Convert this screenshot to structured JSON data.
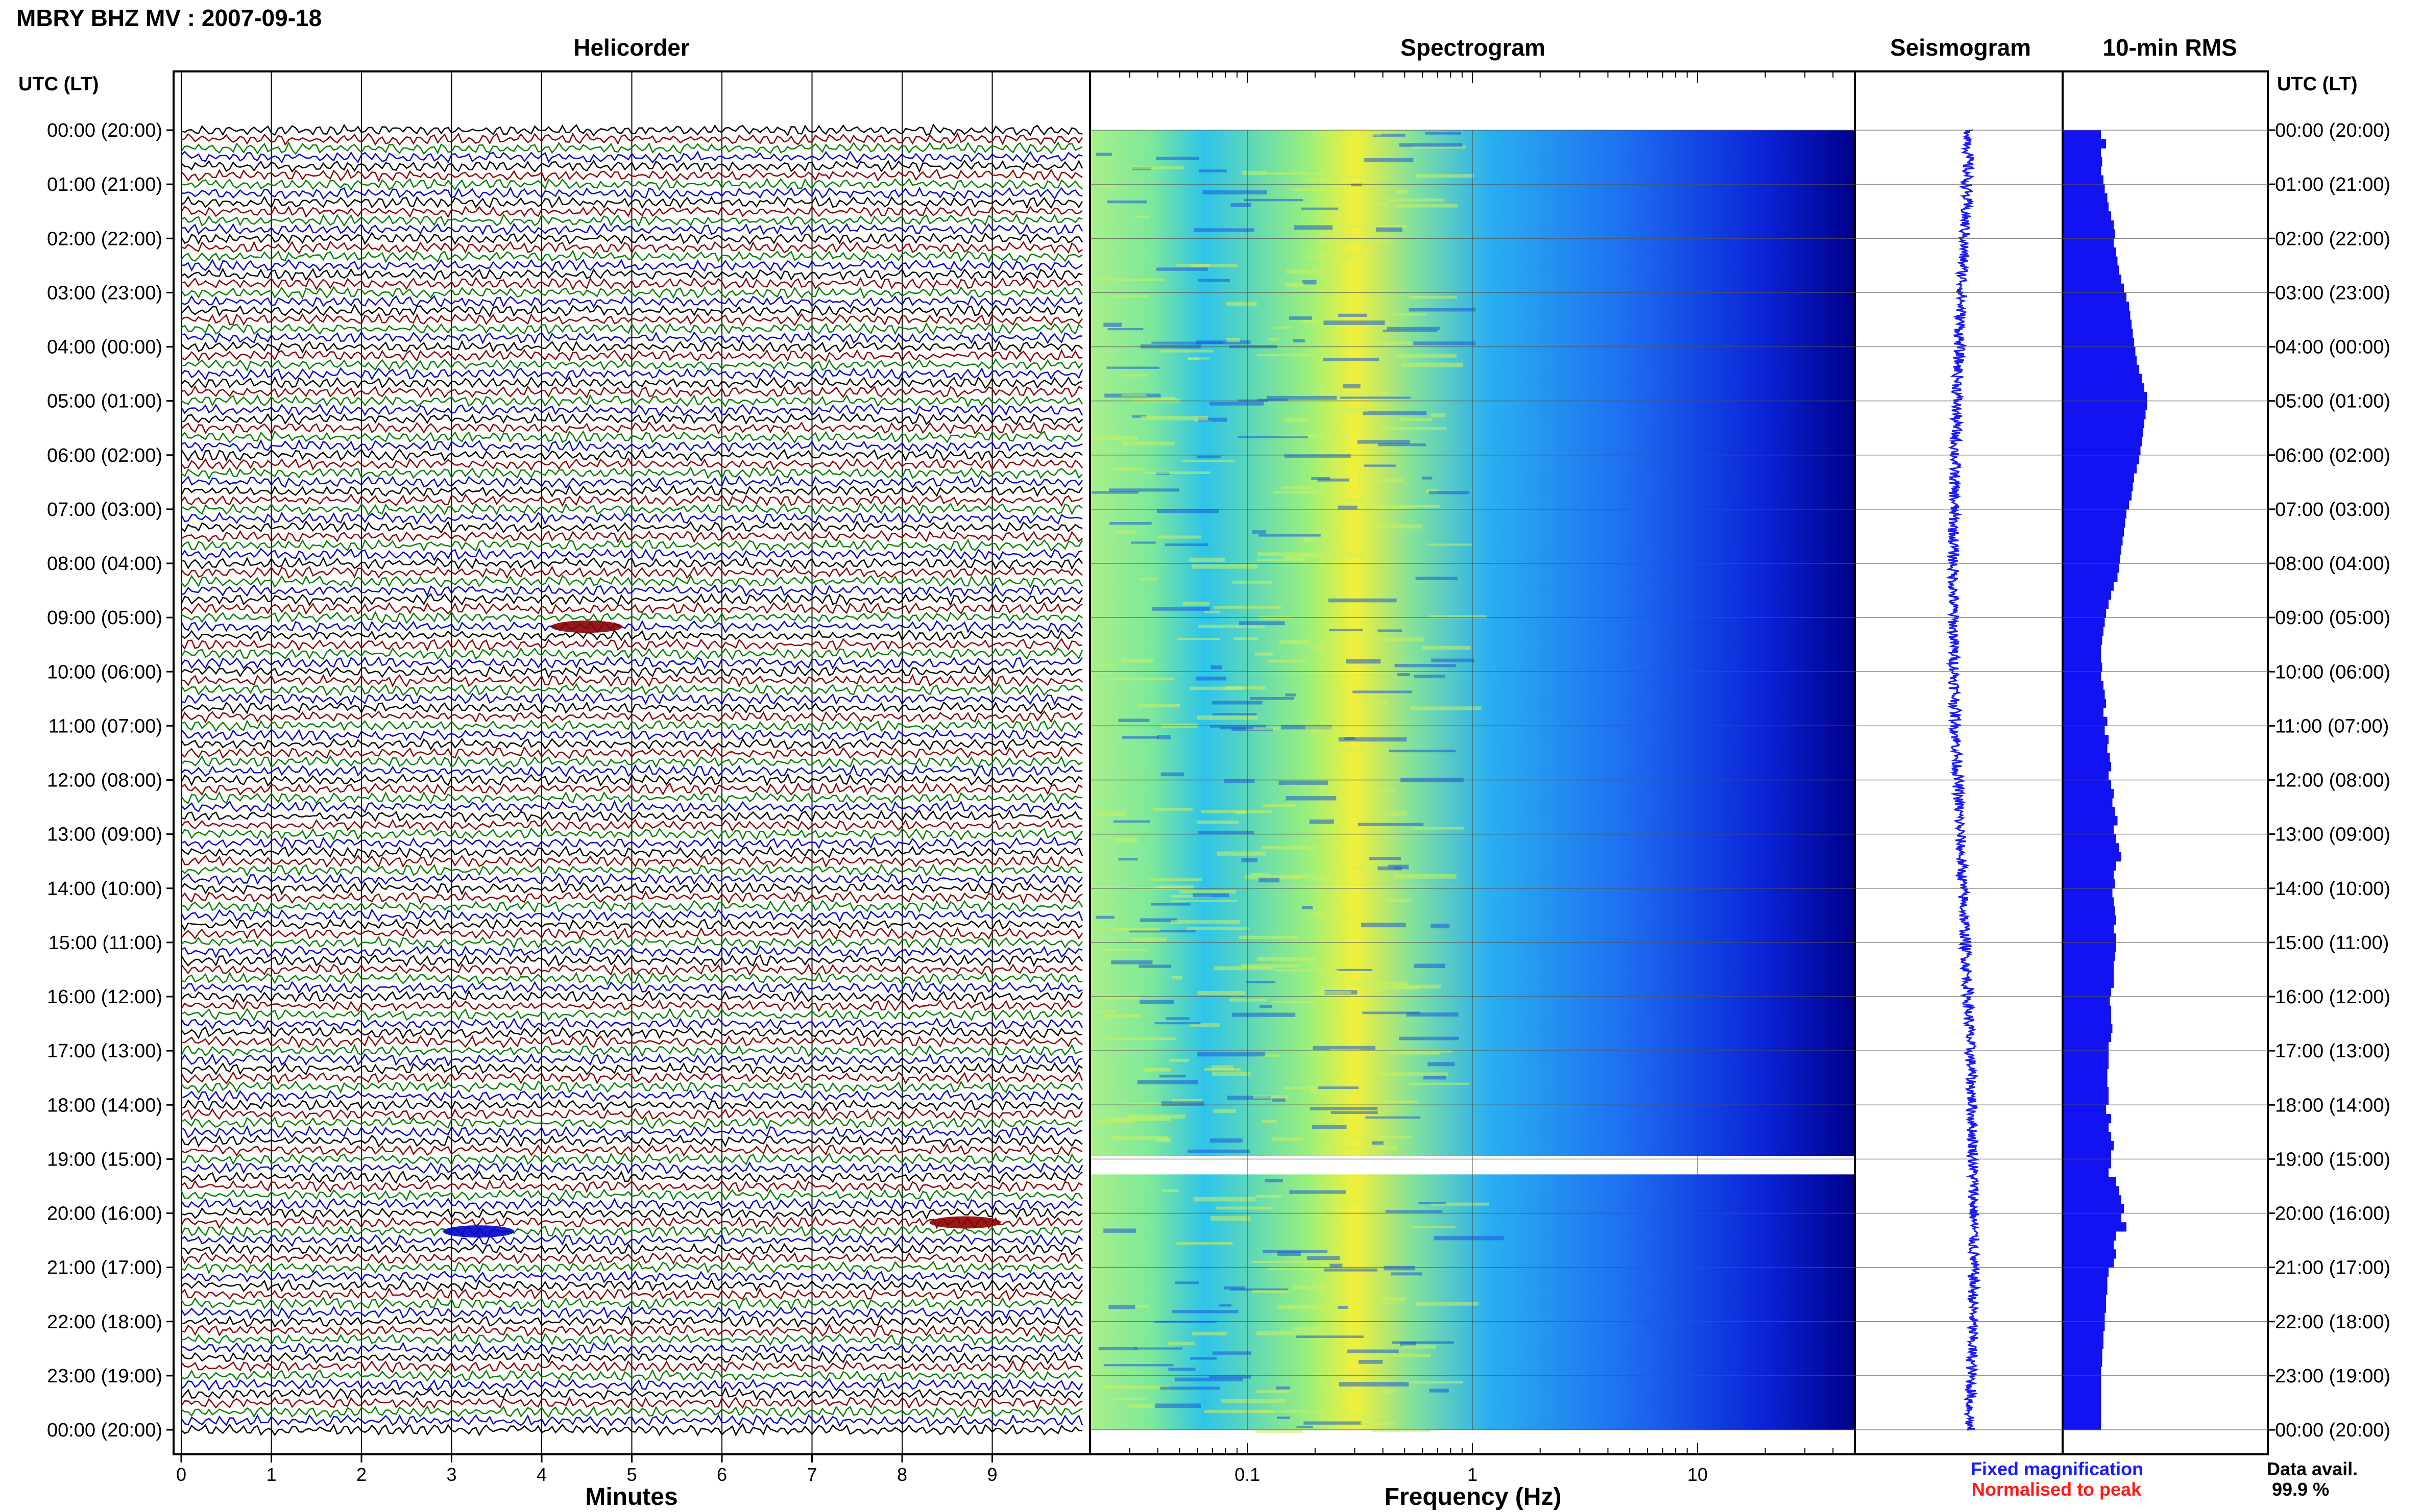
{
  "page_title": "MBRY BHZ MV : 2007-09-18",
  "panels": {
    "helicorder": "Helicorder",
    "spectrogram": "Spectrogram",
    "seismogram": "Seismogram",
    "rms": "10-min RMS"
  },
  "axis": {
    "left_header": "UTC (LT)",
    "right_header": "UTC (LT)",
    "minutes_label": "Minutes",
    "frequency_label": "Frequency (Hz)"
  },
  "legend": {
    "fixed": "Fixed magnification",
    "normalised": "Normalised to peak",
    "fixed_color": "#1a1aff",
    "normalised_color": "#ff1a1a",
    "data_avail_label": "Data avail.",
    "data_avail_value": "99.9 %"
  },
  "chart_data": [
    {
      "type": "helicorder",
      "title": "Helicorder",
      "xlabel": "Minutes",
      "x_ticks": [
        "0",
        "1",
        "2",
        "3",
        "4",
        "5",
        "6",
        "7",
        "8",
        "9"
      ],
      "xlim": [
        0,
        10
      ],
      "time_ticks": [
        "00:00 (20:00)",
        "01:00 (21:00)",
        "02:00 (22:00)",
        "03:00 (23:00)",
        "04:00 (00:00)",
        "05:00 (01:00)",
        "06:00 (02:00)",
        "07:00 (03:00)",
        "08:00 (04:00)",
        "09:00 (05:00)",
        "10:00 (06:00)",
        "11:00 (07:00)",
        "12:00 (08:00)",
        "13:00 (09:00)",
        "14:00 (10:00)",
        "15:00 (11:00)",
        "16:00 (12:00)",
        "17:00 (13:00)",
        "18:00 (14:00)",
        "19:00 (15:00)",
        "20:00 (16:00)",
        "21:00 (17:00)",
        "22:00 (18:00)",
        "23:00 (19:00)",
        "00:00 (20:00)"
      ],
      "line_colors": [
        "#000000",
        "#8b0000",
        "#008000",
        "#0000cd"
      ],
      "events": [
        {
          "time": "09:00",
          "minute": 4.5,
          "color": "#8b0000"
        },
        {
          "time": "20:10",
          "minute": 3.3,
          "color": "#0000cd"
        },
        {
          "time": "20:00",
          "minute": 8.7,
          "color": "#8b0000"
        }
      ]
    },
    {
      "type": "heatmap",
      "title": "Spectrogram",
      "xlabel": "Frequency (Hz)",
      "x_scale": "log",
      "x_ticks": [
        "0.1",
        "1",
        "10"
      ],
      "xlim": [
        0.02,
        50
      ],
      "peak_frequency_hz": 0.3,
      "data_gap_time": "19:00"
    },
    {
      "type": "line",
      "title": "Seismogram"
    },
    {
      "type": "bar",
      "title": "10-min RMS",
      "orientation": "horizontal",
      "values": [
        0.3,
        0.34,
        0.3,
        0.31,
        0.3,
        0.32,
        0.33,
        0.35,
        0.36,
        0.38,
        0.4,
        0.41,
        0.4,
        0.42,
        0.43,
        0.44,
        0.46,
        0.48,
        0.5,
        0.52,
        0.53,
        0.54,
        0.55,
        0.56,
        0.57,
        0.58,
        0.6,
        0.62,
        0.64,
        0.66,
        0.66,
        0.65,
        0.64,
        0.63,
        0.62,
        0.61,
        0.6,
        0.58,
        0.56,
        0.55,
        0.54,
        0.52,
        0.5,
        0.49,
        0.48,
        0.47,
        0.46,
        0.45,
        0.44,
        0.43,
        0.4,
        0.38,
        0.36,
        0.34,
        0.33,
        0.32,
        0.31,
        0.3,
        0.3,
        0.31,
        0.3,
        0.32,
        0.33,
        0.34,
        0.32,
        0.35,
        0.33,
        0.36,
        0.35,
        0.37,
        0.38,
        0.36,
        0.38,
        0.4,
        0.39,
        0.41,
        0.43,
        0.4,
        0.42,
        0.44,
        0.46,
        0.42,
        0.4,
        0.41,
        0.39,
        0.4,
        0.41,
        0.42,
        0.4,
        0.42,
        0.42,
        0.41,
        0.4,
        0.4,
        0.4,
        0.38,
        0.37,
        0.38,
        0.38,
        0.39,
        0.38,
        0.36,
        0.36,
        0.36,
        0.35,
        0.35,
        0.36,
        0.36,
        0.34,
        0.38,
        0.36,
        0.38,
        0.4,
        0.38,
        0.38,
        0.36,
        0.42,
        0.44,
        0.46,
        0.48,
        0.46,
        0.5,
        0.42,
        0.4,
        0.42,
        0.4,
        0.36,
        0.35,
        0.35,
        0.34,
        0.34,
        0.33,
        0.33,
        0.32,
        0.32,
        0.31,
        0.31,
        0.3,
        0.3,
        0.3,
        0.3,
        0.3,
        0.3,
        0.3
      ]
    }
  ]
}
